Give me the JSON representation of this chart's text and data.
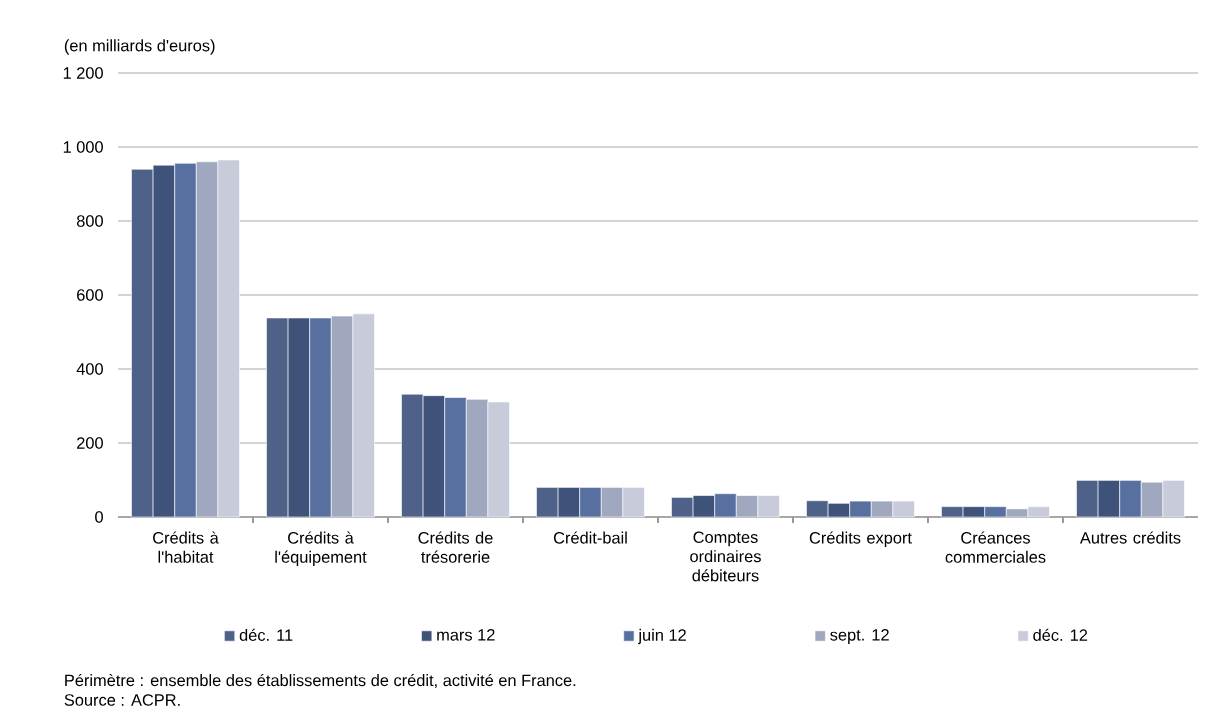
{
  "chart_data": {
    "type": "bar",
    "ylabel": "(en milliards d'euros)",
    "categories": [
      "Crédits à l'habitat",
      "Crédits à l'équipement",
      "Crédits de trésorerie",
      "Crédit-bail",
      "Comptes ordinaires débiteurs",
      "Crédits export",
      "Créances commerciales",
      "Autres crédits"
    ],
    "series": [
      {
        "name": "déc. 11",
        "color": "#4e6189",
        "values": [
          940,
          538,
          332,
          80,
          53,
          44,
          28,
          99
        ]
      },
      {
        "name": "mars 12",
        "color": "#3f5279",
        "values": [
          951,
          538,
          328,
          80,
          58,
          37,
          28,
          99
        ]
      },
      {
        "name": "juin 12",
        "color": "#5870a0",
        "values": [
          956,
          538,
          323,
          80,
          63,
          43,
          28,
          99
        ]
      },
      {
        "name": "sept. 12",
        "color": "#a0a8c0",
        "values": [
          960,
          543,
          318,
          80,
          58,
          43,
          22,
          94
        ]
      },
      {
        "name": "déc. 12",
        "color": "#c8cbd9",
        "values": [
          965,
          549,
          311,
          80,
          58,
          43,
          28,
          99
        ]
      }
    ],
    "ylim": [
      0,
      1200
    ],
    "yticks": [
      0,
      200,
      400,
      600,
      800,
      {
        "value": 1000,
        "label": "1 000"
      },
      {
        "value": 1200,
        "label": "1 200"
      }
    ],
    "grid": "y",
    "legend": "bottom",
    "annotations": [
      "Périmètre : ensemble des établissements de crédit, activité en France.",
      "Source : ACPR."
    ]
  }
}
